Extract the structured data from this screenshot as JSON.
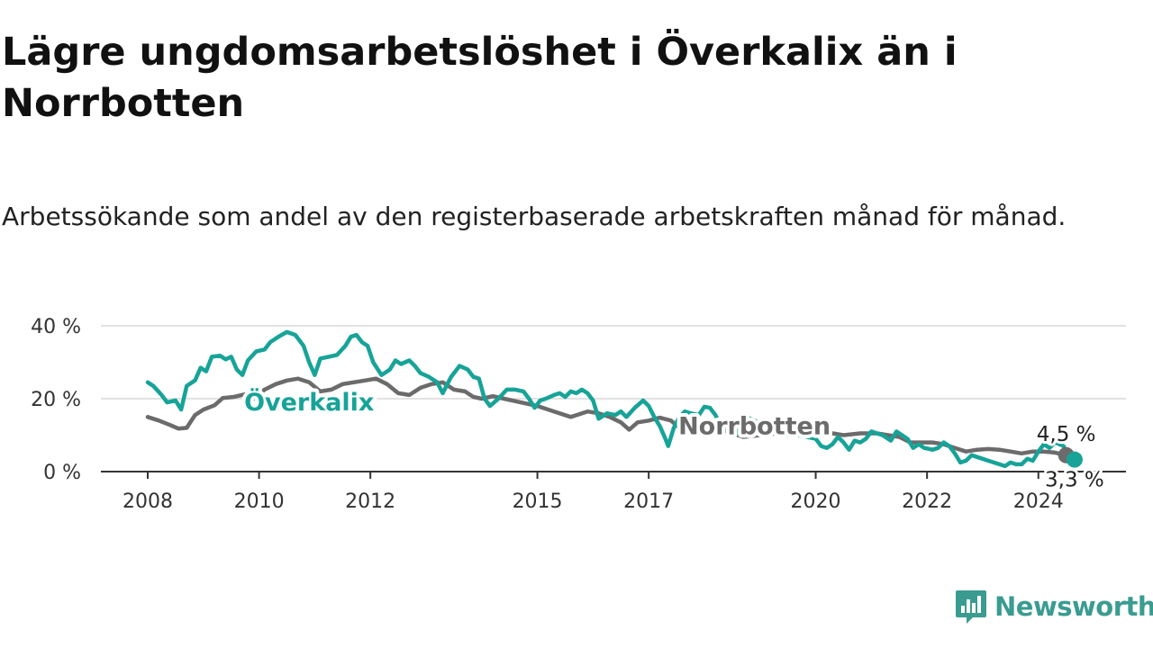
{
  "title": "Lägre ungdomsarbetslöshet i Överkalix än i Norrbotten",
  "subtitle": "Arbetssökande som andel av den registerbaserade arbetskraften månad för månad.",
  "brand": {
    "name": "Newsworthy",
    "icon": "bar-chart-speech-bubble-icon",
    "color": "#3a9c90"
  },
  "chart_data": {
    "type": "line",
    "y_ticks": [
      0,
      20,
      40
    ],
    "y_tick_labels": [
      "0 %",
      "20 %",
      "40 %"
    ],
    "ylim": [
      0,
      40
    ],
    "xlim": [
      2008,
      2024.7
    ],
    "x_ticks": [
      2008,
      2010,
      2012,
      2015,
      2017,
      2020,
      2022,
      2024
    ],
    "x_tick_labels": [
      "2008",
      "2010",
      "2012",
      "2015",
      "2017",
      "2020",
      "2022",
      "2024"
    ],
    "grid": true,
    "series": [
      {
        "name": "Norrbotten",
        "color": "#6b6b6b",
        "end_label": "4,5 %",
        "points": [
          [
            2008.0,
            15.0
          ],
          [
            2008.2,
            14.0
          ],
          [
            2008.4,
            12.8
          ],
          [
            2008.55,
            11.8
          ],
          [
            2008.7,
            12.0
          ],
          [
            2008.85,
            15.5
          ],
          [
            2009.0,
            17.0
          ],
          [
            2009.2,
            18.2
          ],
          [
            2009.35,
            20.2
          ],
          [
            2009.55,
            20.5
          ],
          [
            2009.75,
            21.2
          ],
          [
            2009.9,
            20.0
          ],
          [
            2010.1,
            22.5
          ],
          [
            2010.3,
            24.0
          ],
          [
            2010.5,
            25.0
          ],
          [
            2010.7,
            25.5
          ],
          [
            2010.9,
            24.5
          ],
          [
            2011.1,
            22.0
          ],
          [
            2011.3,
            22.5
          ],
          [
            2011.5,
            24.0
          ],
          [
            2011.7,
            24.5
          ],
          [
            2011.9,
            25.0
          ],
          [
            2012.1,
            25.5
          ],
          [
            2012.3,
            24.0
          ],
          [
            2012.5,
            21.5
          ],
          [
            2012.7,
            21.0
          ],
          [
            2012.9,
            23.0
          ],
          [
            2013.1,
            24.0
          ],
          [
            2013.3,
            24.5
          ],
          [
            2013.5,
            22.5
          ],
          [
            2013.7,
            22.0
          ],
          [
            2013.85,
            20.5
          ],
          [
            2014.0,
            20.0
          ],
          [
            2014.2,
            20.7
          ],
          [
            2014.4,
            20.0
          ],
          [
            2014.7,
            19.0
          ],
          [
            2015.0,
            18.0
          ],
          [
            2015.3,
            16.5
          ],
          [
            2015.6,
            15.0
          ],
          [
            2015.9,
            16.5
          ],
          [
            2016.1,
            16.0
          ],
          [
            2016.3,
            15.0
          ],
          [
            2016.5,
            13.5
          ],
          [
            2016.65,
            11.5
          ],
          [
            2016.8,
            13.5
          ],
          [
            2017.0,
            14.0
          ],
          [
            2017.2,
            14.8
          ],
          [
            2017.4,
            14.0
          ],
          [
            2017.55,
            12.0
          ],
          [
            2017.7,
            11.0
          ],
          [
            2017.9,
            11.5
          ],
          [
            2018.1,
            12.0
          ],
          [
            2018.3,
            11.5
          ],
          [
            2018.5,
            10.5
          ],
          [
            2018.7,
            9.5
          ],
          [
            2019.0,
            10.0
          ],
          [
            2019.3,
            10.5
          ],
          [
            2019.6,
            10.0
          ],
          [
            2019.9,
            10.5
          ],
          [
            2020.1,
            10.0
          ],
          [
            2020.3,
            10.5
          ],
          [
            2020.5,
            10.0
          ],
          [
            2020.8,
            10.5
          ],
          [
            2021.1,
            10.5
          ],
          [
            2021.3,
            10.0
          ],
          [
            2021.5,
            9.5
          ],
          [
            2021.7,
            8.0
          ],
          [
            2021.9,
            8.0
          ],
          [
            2022.1,
            8.0
          ],
          [
            2022.3,
            7.5
          ],
          [
            2022.5,
            6.5
          ],
          [
            2022.7,
            5.5
          ],
          [
            2022.9,
            6.0
          ],
          [
            2023.1,
            6.2
          ],
          [
            2023.3,
            6.0
          ],
          [
            2023.5,
            5.5
          ],
          [
            2023.7,
            5.0
          ],
          [
            2023.9,
            5.5
          ],
          [
            2024.1,
            5.5
          ],
          [
            2024.3,
            5.2
          ],
          [
            2024.5,
            4.5
          ]
        ]
      },
      {
        "name": "Överkalix",
        "color": "#17a398",
        "end_label": "3,3 %",
        "points": [
          [
            2008.0,
            24.5
          ],
          [
            2008.1,
            23.5
          ],
          [
            2008.25,
            21.0
          ],
          [
            2008.35,
            19.0
          ],
          [
            2008.5,
            19.5
          ],
          [
            2008.6,
            17.0
          ],
          [
            2008.7,
            23.5
          ],
          [
            2008.85,
            25.0
          ],
          [
            2008.95,
            28.5
          ],
          [
            2009.05,
            27.5
          ],
          [
            2009.15,
            31.5
          ],
          [
            2009.3,
            31.8
          ],
          [
            2009.4,
            30.8
          ],
          [
            2009.5,
            31.5
          ],
          [
            2009.6,
            28.0
          ],
          [
            2009.7,
            26.5
          ],
          [
            2009.8,
            30.5
          ],
          [
            2009.95,
            33.0
          ],
          [
            2010.1,
            33.5
          ],
          [
            2010.2,
            35.5
          ],
          [
            2010.35,
            37.0
          ],
          [
            2010.5,
            38.3
          ],
          [
            2010.65,
            37.5
          ],
          [
            2010.8,
            34.5
          ],
          [
            2010.9,
            30.0
          ],
          [
            2011.0,
            26.5
          ],
          [
            2011.1,
            31.0
          ],
          [
            2011.25,
            31.5
          ],
          [
            2011.4,
            32.0
          ],
          [
            2011.55,
            34.5
          ],
          [
            2011.65,
            37.0
          ],
          [
            2011.75,
            37.5
          ],
          [
            2011.85,
            35.5
          ],
          [
            2011.95,
            34.5
          ],
          [
            2012.05,
            30.0
          ],
          [
            2012.2,
            26.5
          ],
          [
            2012.35,
            28.0
          ],
          [
            2012.45,
            30.5
          ],
          [
            2012.55,
            29.5
          ],
          [
            2012.7,
            30.5
          ],
          [
            2012.8,
            29.0
          ],
          [
            2012.9,
            27.0
          ],
          [
            2013.05,
            26.0
          ],
          [
            2013.2,
            24.5
          ],
          [
            2013.3,
            21.5
          ],
          [
            2013.45,
            26.0
          ],
          [
            2013.6,
            29.0
          ],
          [
            2013.75,
            28.0
          ],
          [
            2013.85,
            26.0
          ],
          [
            2013.95,
            25.5
          ],
          [
            2014.05,
            20.0
          ],
          [
            2014.15,
            18.0
          ],
          [
            2014.3,
            20.0
          ],
          [
            2014.45,
            22.5
          ],
          [
            2014.6,
            22.5
          ],
          [
            2014.75,
            22.0
          ],
          [
            2014.85,
            20.0
          ],
          [
            2014.95,
            17.5
          ],
          [
            2015.05,
            19.5
          ],
          [
            2015.15,
            20.0
          ],
          [
            2015.3,
            21.0
          ],
          [
            2015.4,
            21.5
          ],
          [
            2015.5,
            20.5
          ],
          [
            2015.6,
            22.0
          ],
          [
            2015.7,
            21.5
          ],
          [
            2015.8,
            22.5
          ],
          [
            2015.9,
            21.5
          ],
          [
            2016.0,
            19.5
          ],
          [
            2016.1,
            14.5
          ],
          [
            2016.25,
            16.0
          ],
          [
            2016.4,
            15.5
          ],
          [
            2016.5,
            16.5
          ],
          [
            2016.6,
            15.0
          ],
          [
            2016.75,
            17.5
          ],
          [
            2016.9,
            19.5
          ],
          [
            2017.0,
            18.0
          ],
          [
            2017.1,
            15.0
          ],
          [
            2017.2,
            12.5
          ],
          [
            2017.3,
            9.0
          ],
          [
            2017.35,
            7.0
          ],
          [
            2017.45,
            12.0
          ],
          [
            2017.55,
            15.0
          ],
          [
            2017.65,
            16.5
          ],
          [
            2017.75,
            16.0
          ],
          [
            2017.9,
            15.5
          ],
          [
            2018.0,
            17.8
          ],
          [
            2018.1,
            17.5
          ],
          [
            2018.2,
            15.5
          ],
          [
            2018.3,
            12.0
          ],
          [
            2018.45,
            11.5
          ],
          [
            2018.55,
            10.0
          ],
          [
            2018.65,
            12.0
          ],
          [
            2018.75,
            15.0
          ],
          [
            2018.9,
            14.0
          ],
          [
            2019.1,
            12.5
          ],
          [
            2019.3,
            11.0
          ],
          [
            2019.5,
            10.0
          ],
          [
            2019.7,
            10.0
          ],
          [
            2019.85,
            9.5
          ],
          [
            2020.0,
            9.0
          ],
          [
            2020.1,
            7.0
          ],
          [
            2020.2,
            6.5
          ],
          [
            2020.3,
            7.5
          ],
          [
            2020.4,
            9.5
          ],
          [
            2020.5,
            8.0
          ],
          [
            2020.6,
            6.0
          ],
          [
            2020.7,
            8.5
          ],
          [
            2020.8,
            8.0
          ],
          [
            2020.9,
            9.0
          ],
          [
            2021.0,
            11.0
          ],
          [
            2021.1,
            10.5
          ],
          [
            2021.2,
            10.0
          ],
          [
            2021.35,
            8.5
          ],
          [
            2021.45,
            11.0
          ],
          [
            2021.55,
            10.0
          ],
          [
            2021.65,
            9.0
          ],
          [
            2021.75,
            6.5
          ],
          [
            2021.85,
            7.5
          ],
          [
            2021.95,
            6.5
          ],
          [
            2022.1,
            6.0
          ],
          [
            2022.2,
            6.5
          ],
          [
            2022.3,
            8.0
          ],
          [
            2022.4,
            7.0
          ],
          [
            2022.5,
            5.0
          ],
          [
            2022.6,
            2.5
          ],
          [
            2022.7,
            3.0
          ],
          [
            2022.8,
            4.5
          ],
          [
            2022.9,
            4.0
          ],
          [
            2023.0,
            3.5
          ],
          [
            2023.1,
            3.0
          ],
          [
            2023.2,
            2.5
          ],
          [
            2023.3,
            2.0
          ],
          [
            2023.4,
            1.5
          ],
          [
            2023.5,
            2.5
          ],
          [
            2023.6,
            2.0
          ],
          [
            2023.7,
            2.0
          ],
          [
            2023.8,
            3.5
          ],
          [
            2023.9,
            3.0
          ],
          [
            2024.0,
            5.5
          ],
          [
            2024.1,
            7.5
          ],
          [
            2024.2,
            6.5
          ],
          [
            2024.3,
            8.0
          ],
          [
            2024.45,
            7.0
          ],
          [
            2024.55,
            4.5
          ],
          [
            2024.65,
            3.3
          ]
        ]
      }
    ],
    "series_labels": [
      {
        "series": "Överkalix",
        "text": "Överkalix",
        "x": 2010.9,
        "y": 16.8
      },
      {
        "series": "Norrbotten",
        "text": "Norrbotten",
        "x": 2018.9,
        "y": 10.3
      }
    ]
  }
}
